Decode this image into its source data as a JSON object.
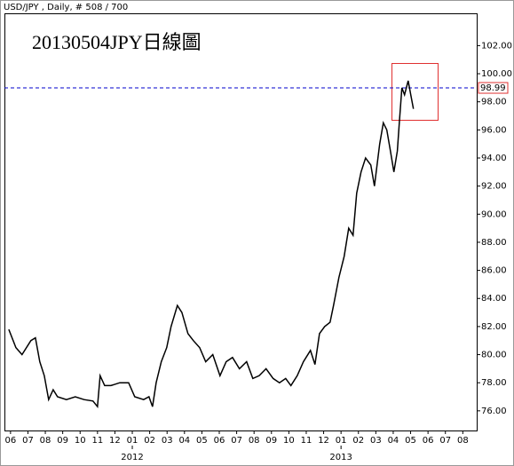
{
  "chart_data": {
    "type": "line",
    "header": "USD/JPY , Daily, # 508 / 700",
    "title": "20130504JPY日線圖",
    "color": "#000000",
    "x": [
      -0.1,
      0.31,
      0.66,
      1.17,
      1.43,
      1.68,
      1.94,
      2.19,
      2.45,
      2.7,
      3.21,
      3.72,
      4.23,
      4.74,
      5.0,
      5.15,
      5.41,
      5.77,
      6.28,
      6.79,
      7.14,
      7.65,
      7.96,
      8.16,
      8.37,
      8.67,
      8.98,
      9.23,
      9.59,
      9.85,
      10.2,
      10.51,
      10.87,
      11.22,
      11.63,
      12.04,
      12.4,
      12.76,
      13.16,
      13.57,
      13.93,
      14.29,
      14.69,
      15.1,
      15.46,
      15.82,
      16.12,
      16.48,
      16.84,
      17.24,
      17.5,
      17.76,
      18.06,
      18.37,
      18.57,
      18.88,
      19.18,
      19.44,
      19.69,
      19.9,
      20.15,
      20.41,
      20.71,
      20.92,
      21.22,
      21.43,
      21.63,
      21.84,
      22.04,
      22.24,
      22.35,
      22.5,
      22.65,
      22.86,
      23.01,
      23.16
    ],
    "values": [
      81.8,
      80.5,
      80,
      81,
      81.2,
      79.5,
      78.5,
      76.8,
      77.5,
      77,
      76.8,
      77,
      76.8,
      76.7,
      76.3,
      78.5,
      77.8,
      77.8,
      78,
      78,
      77,
      76.8,
      77,
      76.3,
      78,
      79.5,
      80.5,
      82,
      83.5,
      83,
      81.5,
      81,
      80.5,
      79.5,
      80,
      78.5,
      79.5,
      79.8,
      79,
      79.5,
      78.3,
      78.5,
      79,
      78.3,
      78,
      78.3,
      77.8,
      78.5,
      79.5,
      80.3,
      79.3,
      81.5,
      82,
      82.3,
      83.5,
      85.5,
      87,
      89,
      88.5,
      91.5,
      93,
      94,
      93.5,
      92,
      95,
      96.5,
      96,
      94.5,
      93,
      94.5,
      96.5,
      99,
      98.5,
      99.5,
      98.5,
      97.5
    ],
    "xlim": [
      -0.35,
      26.8
    ],
    "xticks": [
      {
        "value": 0,
        "label": "06"
      },
      {
        "value": 1,
        "label": "07"
      },
      {
        "value": 2,
        "label": "08"
      },
      {
        "value": 3,
        "label": "09"
      },
      {
        "value": 4,
        "label": "10"
      },
      {
        "value": 5,
        "label": "11"
      },
      {
        "value": 6,
        "label": "12"
      },
      {
        "value": 7,
        "label": "01"
      },
      {
        "value": 8,
        "label": "02"
      },
      {
        "value": 9,
        "label": "03"
      },
      {
        "value": 10,
        "label": "04"
      },
      {
        "value": 11,
        "label": "05"
      },
      {
        "value": 12,
        "label": "06"
      },
      {
        "value": 13,
        "label": "07"
      },
      {
        "value": 14,
        "label": "08"
      },
      {
        "value": 15,
        "label": "09"
      },
      {
        "value": 16,
        "label": "10"
      },
      {
        "value": 17,
        "label": "11"
      },
      {
        "value": 18,
        "label": "12"
      },
      {
        "value": 19,
        "label": "01"
      },
      {
        "value": 20,
        "label": "02"
      },
      {
        "value": 21,
        "label": "03"
      },
      {
        "value": 22,
        "label": "04"
      },
      {
        "value": 23,
        "label": "05"
      },
      {
        "value": 24,
        "label": "06"
      },
      {
        "value": 25,
        "label": "07"
      },
      {
        "value": 26,
        "label": "08"
      }
    ],
    "year_ticks": [
      {
        "value": 7,
        "label": "2012"
      },
      {
        "value": 19,
        "label": "2013"
      }
    ],
    "ylim": [
      74.6,
      104.3
    ],
    "yticks": [
      {
        "value": 76,
        "label": "76.00"
      },
      {
        "value": 78,
        "label": "78.00"
      },
      {
        "value": 80,
        "label": "80.00"
      },
      {
        "value": 82,
        "label": "82.00"
      },
      {
        "value": 84,
        "label": "84.00"
      },
      {
        "value": 86,
        "label": "86.00"
      },
      {
        "value": 88,
        "label": "88.00"
      },
      {
        "value": 90,
        "label": "90.00"
      },
      {
        "value": 92,
        "label": "92.00"
      },
      {
        "value": 94,
        "label": "94.00"
      },
      {
        "value": 96,
        "label": "96.00"
      },
      {
        "value": 98,
        "label": "98.00"
      },
      {
        "value": 100,
        "label": "100.00"
      },
      {
        "value": 102,
        "label": "102.00"
      }
    ],
    "hline": 98.99,
    "hline_color": "#0000cc"
  }
}
